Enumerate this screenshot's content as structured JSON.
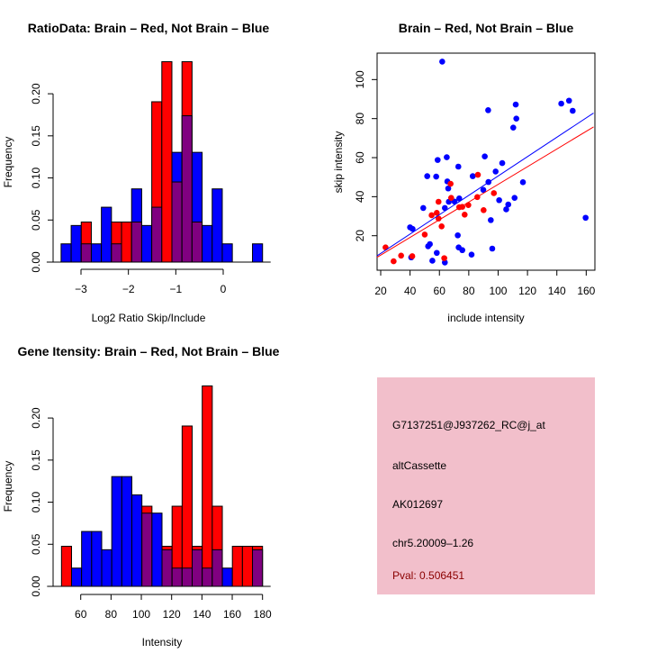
{
  "chart_data": [
    {
      "type": "bar",
      "subtype": "overlaid-histogram",
      "title": "RatioData: Brain – Red, Not Brain – Blue",
      "xlabel": "Log2 Ratio Skip/Include",
      "ylabel": "Frequency",
      "xlim": [
        -3.42,
        0.83
      ],
      "ylim": [
        0,
        0.24
      ],
      "xticks": [
        "−3",
        "−2",
        "−1",
        "0"
      ],
      "xtick_values": [
        -3,
        -2,
        -1,
        0
      ],
      "yticks": [
        "0.00",
        "0.05",
        "0.10",
        "0.15",
        "0.20"
      ],
      "ytick_values": [
        0,
        0.05,
        0.1,
        0.15,
        0.2
      ],
      "bin_start": -3.42,
      "bin_width": 0.2125,
      "series": [
        {
          "name": "Brain",
          "color": "#ff0000",
          "values": [
            0,
            0,
            0.0476,
            0,
            0,
            0.0476,
            0.0476,
            0.0476,
            0,
            0.1905,
            0.2381,
            0.0952,
            0.2381,
            0.0476,
            0,
            0,
            0,
            0,
            0,
            0
          ]
        },
        {
          "name": "Not Brain",
          "color": "#0000ff",
          "values": [
            0.0217,
            0.0435,
            0.0217,
            0.0217,
            0.0652,
            0.0217,
            0,
            0.087,
            0.0435,
            0.0652,
            0,
            0.1304,
            0.1739,
            0.1304,
            0.0435,
            0.087,
            0.0217,
            0,
            0,
            0.0217
          ]
        }
      ],
      "overlap_color": "#800080"
    },
    {
      "type": "scatter",
      "title": "Brain – Red, Not Brain – Blue",
      "xlabel": "include intensity",
      "ylabel": "skip intensity",
      "xlim": [
        17,
        165
      ],
      "ylim": [
        2,
        113
      ],
      "xticks": [
        "20",
        "40",
        "60",
        "80",
        "100",
        "120",
        "140",
        "160"
      ],
      "xtick_values": [
        20,
        40,
        60,
        80,
        100,
        120,
        140,
        160
      ],
      "yticks": [
        "20",
        "40",
        "60",
        "80",
        "100"
      ],
      "ytick_values": [
        20,
        40,
        60,
        80,
        100
      ],
      "series": [
        {
          "name": "Not Brain",
          "color": "#0000ff",
          "points": [
            [
              61.9,
              109.2
            ],
            [
              143,
              87.7
            ],
            [
              148.3,
              89.2
            ],
            [
              150.8,
              84
            ],
            [
              112,
              87.2
            ],
            [
              93.2,
              84.3
            ],
            [
              112.4,
              80
            ],
            [
              110.3,
              75.4
            ],
            [
              65,
              60.2
            ],
            [
              90.9,
              60.6
            ],
            [
              58.8,
              58.8
            ],
            [
              102.8,
              57.2
            ],
            [
              72.9,
              55.4
            ],
            [
              98.3,
              52.9
            ],
            [
              51.7,
              50.5
            ],
            [
              57.8,
              50.3
            ],
            [
              82.7,
              50.5
            ],
            [
              65.4,
              47.8
            ],
            [
              93.4,
              47.5
            ],
            [
              116.9,
              47.4
            ],
            [
              66,
              44.2
            ],
            [
              89.9,
              43.5
            ],
            [
              49,
              34.2
            ],
            [
              63.7,
              34.2
            ],
            [
              66.4,
              37.4
            ],
            [
              70.3,
              37.5
            ],
            [
              73.5,
              39.1
            ],
            [
              100.7,
              38.2
            ],
            [
              111.2,
              39.4
            ],
            [
              106.9,
              36
            ],
            [
              105.5,
              33.5
            ],
            [
              95,
              28
            ],
            [
              159.6,
              29.2
            ],
            [
              40,
              24.3
            ],
            [
              41.7,
              23.5
            ],
            [
              72.5,
              20.2
            ],
            [
              52.3,
              14.6
            ],
            [
              53.5,
              15.7
            ],
            [
              58.2,
              11.2
            ],
            [
              73.1,
              14
            ],
            [
              75.6,
              12.6
            ],
            [
              81.9,
              10.3
            ],
            [
              96,
              13.4
            ],
            [
              40.8,
              8.9
            ],
            [
              55.2,
              7.2
            ],
            [
              63.7,
              6.3
            ]
          ],
          "fit": {
            "slope": 0.496,
            "intercept": 1.0
          }
        },
        {
          "name": "Brain",
          "color": "#ff0000",
          "points": [
            [
              23.3,
              14
            ],
            [
              28.8,
              6.9
            ],
            [
              33.9,
              9.8
            ],
            [
              41.5,
              9.5
            ],
            [
              63.3,
              8.5
            ],
            [
              50,
              20.6
            ],
            [
              61.5,
              24.8
            ],
            [
              54.7,
              30.5
            ],
            [
              58.2,
              31.7
            ],
            [
              59.4,
              28.8
            ],
            [
              59.4,
              37.4
            ],
            [
              67.6,
              46.6
            ],
            [
              68,
              39.4
            ],
            [
              73.5,
              34.6
            ],
            [
              75.6,
              34.8
            ],
            [
              79.7,
              35.7
            ],
            [
              77.2,
              30.8
            ],
            [
              86.2,
              51.2
            ],
            [
              85.8,
              39.8
            ],
            [
              90.1,
              33.1
            ],
            [
              97.1,
              41.8
            ]
          ],
          "fit": {
            "slope": 0.453,
            "intercept": 1.0
          }
        }
      ]
    },
    {
      "type": "bar",
      "subtype": "overlaid-histogram",
      "title": "Gene Itensity: Brain – Red, Not Brain – Blue",
      "xlabel": "Intensity",
      "ylabel": "Frequency",
      "xlim": [
        47.3,
        180
      ],
      "ylim": [
        0,
        0.24
      ],
      "xticks": [
        "60",
        "80",
        "100",
        "120",
        "140",
        "160",
        "180"
      ],
      "xtick_values": [
        60,
        80,
        100,
        120,
        140,
        160,
        180
      ],
      "yticks": [
        "0.00",
        "0.05",
        "0.10",
        "0.15",
        "0.20"
      ],
      "ytick_values": [
        0,
        0.05,
        0.1,
        0.15,
        0.2
      ],
      "bin_start": 47.3,
      "bin_width": 6.635,
      "series": [
        {
          "name": "Brain",
          "color": "#ff0000",
          "values": [
            0.0476,
            0,
            0,
            0,
            0,
            0,
            0,
            0,
            0.0952,
            0,
            0.0476,
            0.0952,
            0.1905,
            0.0476,
            0.2381,
            0.0952,
            0,
            0.0476,
            0.0476,
            0.0476
          ]
        },
        {
          "name": "Not Brain",
          "color": "#0000ff",
          "values": [
            0,
            0.0217,
            0.0652,
            0.0652,
            0.0435,
            0.1304,
            0.1304,
            0.1087,
            0.087,
            0.087,
            0.0435,
            0.0217,
            0.0217,
            0.0435,
            0.0217,
            0.0435,
            0.0217,
            0,
            0,
            0.0435
          ]
        }
      ],
      "overlap_color": "#800080"
    }
  ],
  "info_box": {
    "probe_id": "G7137251@J937262_RC@j_at",
    "event_type": "altCassette",
    "accession": "AK012697",
    "location": "chr5.20009–1.26",
    "pval": "Pval: 0.506451",
    "background_color": "#f2bfcb",
    "pval_color": "#8b0000"
  }
}
